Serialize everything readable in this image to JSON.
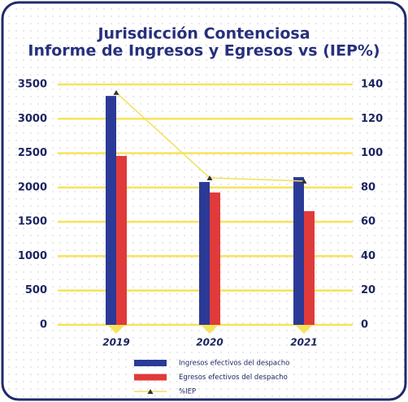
{
  "chart_data": {
    "type": "bar",
    "title": [
      "Jurisdicción Contenciosa",
      "Informe de Ingresos y Egresos vs (IEP%)"
    ],
    "categories": [
      "2019",
      "2020",
      "2021"
    ],
    "series": [
      {
        "name": "Ingresos efectivos del despacho",
        "color": "#2b3a97",
        "type": "bar",
        "values": [
          3333,
          2080,
          2151
        ]
      },
      {
        "name": "Egresos efectivos del despacho",
        "color": "#e03a3a",
        "type": "bar",
        "values": [
          2459,
          1927,
          1655
        ]
      },
      {
        "name": "%IEP",
        "color": "#f2e15a",
        "marker_color": "#333333",
        "type": "line",
        "axis": "y2",
        "values": [
          135.3,
          85.6,
          83.7
        ]
      }
    ],
    "ylim": [
      0,
      3500
    ],
    "yticks": [
      0,
      500,
      1000,
      1500,
      2000,
      2500,
      3000,
      3500
    ],
    "y2lim": [
      0,
      140
    ],
    "y2ticks": [
      0,
      20,
      40,
      60,
      80,
      100,
      120,
      140
    ],
    "grid": true,
    "grid_color": "#f7e35a",
    "legend": "bottom"
  }
}
